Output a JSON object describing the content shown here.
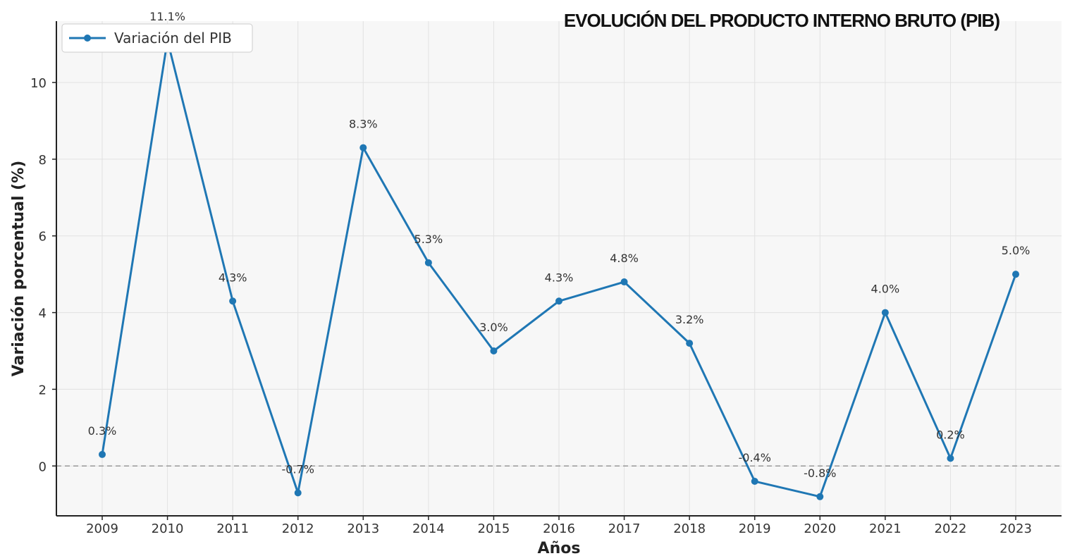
{
  "chart_data": {
    "type": "line",
    "title": "EVOLUCIÓN DEL PRODUCTO INTERNO BRUTO (PIB)",
    "xlabel": "Años",
    "ylabel": "Variación porcentual (%)",
    "categories": [
      "2009",
      "2010",
      "2011",
      "2012",
      "2013",
      "2014",
      "2015",
      "2016",
      "2017",
      "2018",
      "2019",
      "2020",
      "2021",
      "2022",
      "2023"
    ],
    "series": [
      {
        "name": "Variación del PIB",
        "values": [
          0.3,
          11.1,
          4.3,
          -0.7,
          8.3,
          5.3,
          3.0,
          4.3,
          4.8,
          3.2,
          -0.4,
          -0.8,
          4.0,
          0.2,
          5.0
        ],
        "labels": [
          "0.3%",
          "11.1%",
          "4.3%",
          "-0.7%",
          "8.3%",
          "5.3%",
          "3.0%",
          "4.3%",
          "4.8%",
          "3.2%",
          "-0.4%",
          "-0.8%",
          "4.0%",
          "0.2%",
          "5.0%"
        ],
        "color": "#1f77b4"
      }
    ],
    "yticks": [
      "0",
      "2",
      "4",
      "6",
      "8",
      "10"
    ],
    "ylim": [
      -1.3,
      11.6
    ],
    "grid": true,
    "zero_line": "dashed",
    "legend": "top-left"
  }
}
